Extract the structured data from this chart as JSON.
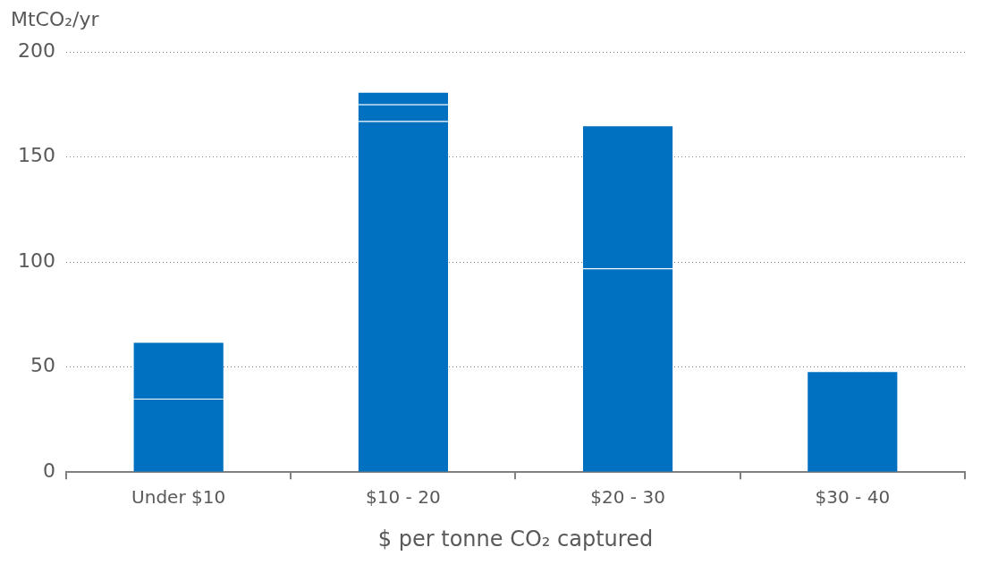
{
  "chart_data": {
    "type": "bar",
    "stacked": true,
    "ylabel": "MtCO₂/yr",
    "xlabel": "$ per tonne CO₂ captured",
    "categories": [
      "Under $10",
      "$10 - 20",
      "$20 - 30",
      "$30 - 40"
    ],
    "series": [
      {
        "color": "#0070c0",
        "values": [
          35,
          167,
          97,
          48
        ]
      },
      {
        "color": "#0070c0",
        "values": [
          27,
          8,
          68,
          null
        ]
      },
      {
        "color": "#0070c0",
        "values": [
          null,
          6,
          null,
          null
        ]
      }
    ],
    "ylim": [
      0,
      200
    ],
    "yticks": [
      0,
      50,
      100,
      150,
      200
    ],
    "grid": "y",
    "legend": false
  }
}
